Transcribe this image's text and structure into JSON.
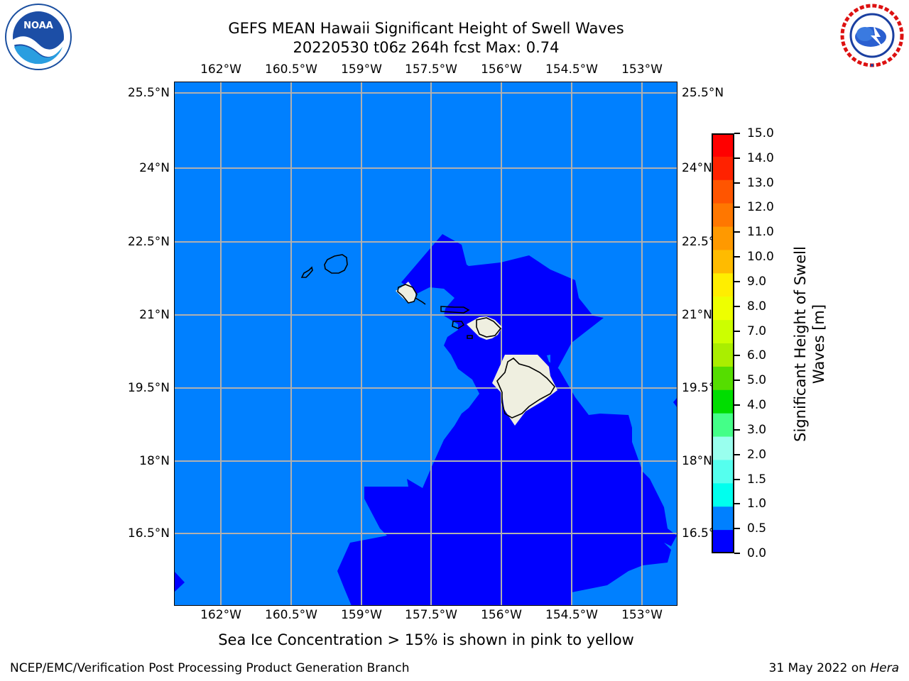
{
  "title": {
    "line1": "GEFS MEAN Hawaii Significant Height of Swell Waves",
    "line2": "20220530 t06z 264h fcst   Max: 0.74"
  },
  "logos": {
    "left": "noaa-logo",
    "left_text": "NOAA",
    "right": "national-weather-service-logo",
    "right_text": "NATIONAL WEATHER SERVICE"
  },
  "map": {
    "lon_ticks": [
      "162°W",
      "160.5°W",
      "159°W",
      "157.5°W",
      "156°W",
      "154.5°W",
      "153°W"
    ],
    "lat_ticks": [
      "25.5°N",
      "24°N",
      "22.5°N",
      "21°N",
      "19.5°N",
      "18°N",
      "16.5°N"
    ],
    "lat_ticks_right": [
      "25.5°N",
      "24°N",
      "22.5°N",
      "21°N",
      "19.5°N",
      "18°N",
      "16.5°N"
    ],
    "ocean_color": "#0080ff",
    "low_band_color": "#0000ff",
    "land_color": "#efefe0"
  },
  "colorbar": {
    "label_line1": "Significant Height of Swell",
    "label_line2": "Waves [m]",
    "ticks": [
      "15.0",
      "14.0",
      "13.0",
      "12.0",
      "11.0",
      "10.0",
      "9.0",
      "8.0",
      "7.0",
      "6.0",
      "5.0",
      "4.0",
      "3.0",
      "2.0",
      "1.5",
      "1.0",
      "0.5",
      "0.0"
    ],
    "colors": [
      "#ff0000",
      "#ff2200",
      "#ff5500",
      "#ff7700",
      "#ff9900",
      "#ffbb00",
      "#ffee00",
      "#eeff00",
      "#ccff00",
      "#aaee00",
      "#55dd00",
      "#00dd00",
      "#44ff88",
      "#99ffee",
      "#55ffee",
      "#00ffee",
      "#0080ff",
      "#0000ff"
    ]
  },
  "notes": {
    "sea_ice": "Sea Ice Concentration > 15% is shown in pink to yellow"
  },
  "footer": {
    "left": "NCEP/EMC/Verification Post Processing Product Generation Branch",
    "right_date": "31 May 2022 on ",
    "right_host": "Hera"
  }
}
